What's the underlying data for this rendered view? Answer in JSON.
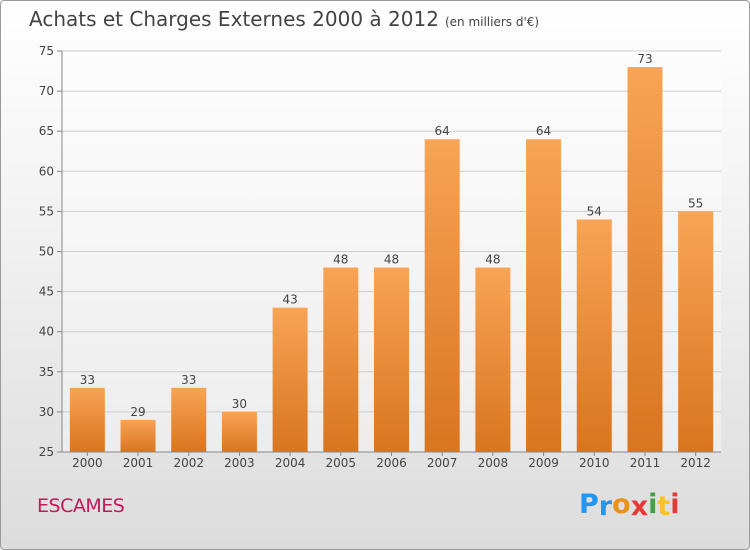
{
  "title": "Achats et Charges Externes 2000 à 2012",
  "subtitle": "(en milliers d'€)",
  "commune": "ESCAMES",
  "logo": {
    "letters": [
      "P",
      "r",
      "o",
      "x",
      "i",
      "t",
      "i"
    ],
    "colors": [
      "#2196f3",
      "#2196f3",
      "#e8941a",
      "#e53935",
      "#43a047",
      "#fbc02d",
      "#e53935"
    ]
  },
  "colors": {
    "bar_light": "#f7a455",
    "bar_dark": "#d9751f",
    "axis": "#888888",
    "grid": "#cccccc",
    "label": "#444444"
  },
  "chart_data": {
    "type": "bar",
    "categories": [
      "2000",
      "2001",
      "2002",
      "2003",
      "2004",
      "2005",
      "2006",
      "2007",
      "2008",
      "2009",
      "2010",
      "2011",
      "2012"
    ],
    "values": [
      33,
      29,
      33,
      30,
      43,
      48,
      48,
      64,
      48,
      64,
      54,
      73,
      55
    ],
    "data_labels": [
      "33",
      "29",
      "33",
      "30",
      "43",
      "48",
      "48",
      "64",
      "48",
      "64",
      "54",
      "73",
      "55"
    ],
    "yticks": [
      "25",
      "30",
      "35",
      "40",
      "45",
      "50",
      "55",
      "60",
      "65",
      "70",
      "75"
    ],
    "ylim": [
      25,
      75
    ],
    "grid": true
  }
}
